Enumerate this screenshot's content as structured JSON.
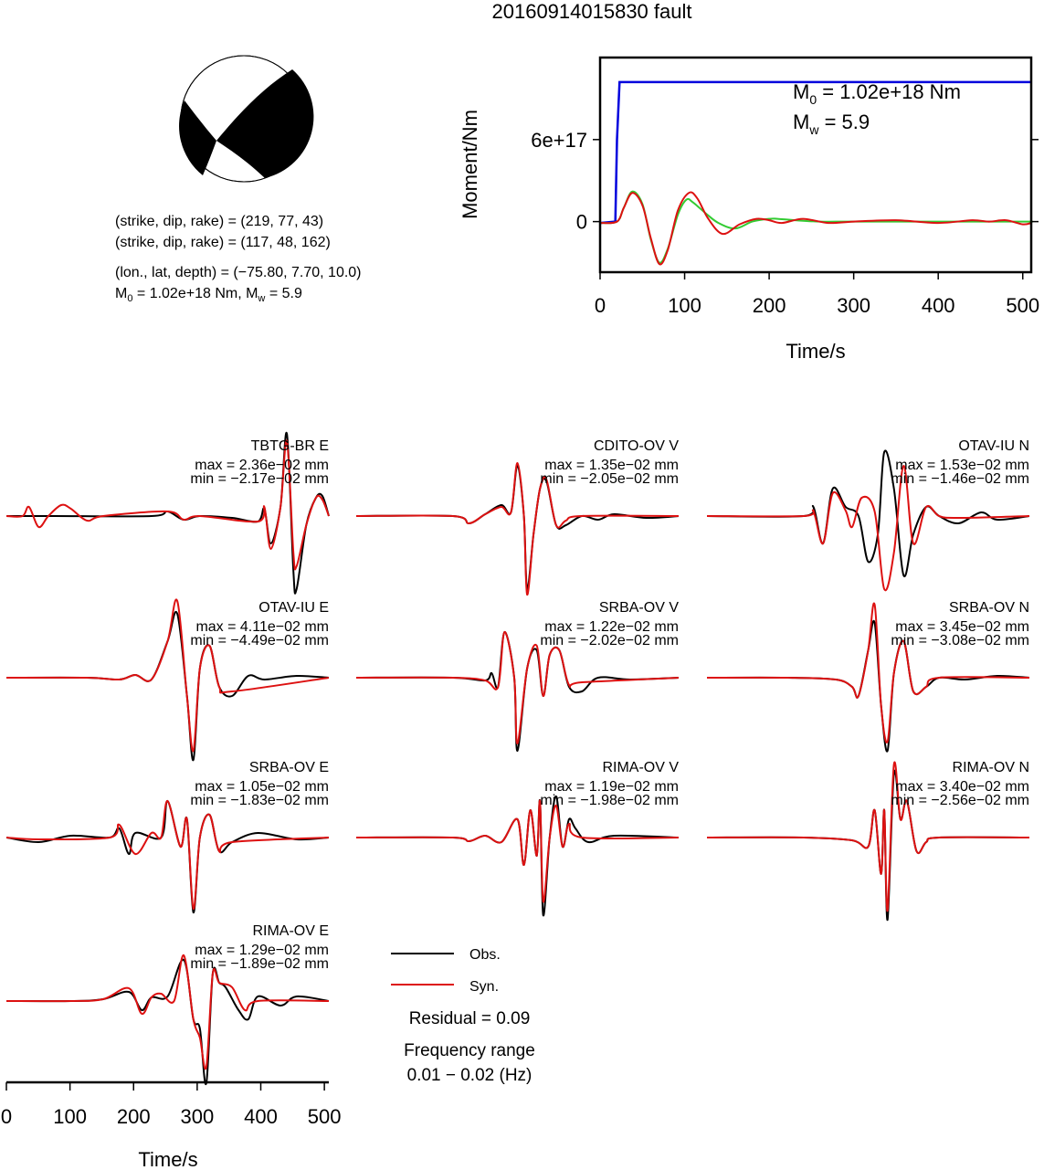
{
  "title": "20160914015830 fault",
  "focal_mechanism": {
    "plane1": "(strike, dip, rake) = (219, 77, 43)",
    "plane2": "(strike, dip, rake) = (117, 48, 162)",
    "location": "(lon., lat, depth) = (−75.80, 7.70, 10.0)",
    "m0_label": "M",
    "m0_sub": "0",
    "m0_text": " = 1.02e+18 Nm, M",
    "mw_sub": "w",
    "mw_text": " = 5.9"
  },
  "moment_plot": {
    "ylabel": "Moment/Nm",
    "xlabel": "Time/s",
    "ytick_labels": [
      "0",
      "6e+17"
    ],
    "xtick_labels": [
      "0",
      "100",
      "200",
      "300",
      "400",
      "500"
    ],
    "m0_prefix": "M",
    "m0_sub": "0",
    "m0_value": " = 1.02e+18 Nm",
    "mw_prefix": "M",
    "mw_sub": "w",
    "mw_value": " = 5.9",
    "colors": {
      "cumulative": "#0000dd",
      "rate_obs": "#33cc33",
      "rate_syn": "#dd1111"
    }
  },
  "waveforms": [
    {
      "station": "TBTG-BR E",
      "max": "max = 2.36e−02 mm",
      "min": "min = −2.17e−02 mm"
    },
    {
      "station": "CDITO-OV V",
      "max": "max = 1.35e−02 mm",
      "min": "min = −2.05e−02 mm"
    },
    {
      "station": "OTAV-IU N",
      "max": "max = 1.53e−02 mm",
      "min": "min = −1.46e−02 mm"
    },
    {
      "station": "OTAV-IU E",
      "max": "max = 4.11e−02 mm",
      "min": "min = −4.49e−02 mm"
    },
    {
      "station": "SRBA-OV V",
      "max": "max = 1.22e−02 mm",
      "min": "min = −2.02e−02 mm"
    },
    {
      "station": "SRBA-OV N",
      "max": "max = 3.45e−02 mm",
      "min": "min = −3.08e−02 mm"
    },
    {
      "station": "SRBA-OV E",
      "max": "max = 1.05e−02 mm",
      "min": "min = −1.83e−02 mm"
    },
    {
      "station": "RIMA-OV V",
      "max": "max = 1.19e−02 mm",
      "min": "min = −1.98e−02 mm"
    },
    {
      "station": "RIMA-OV N",
      "max": "max = 3.40e−02 mm",
      "min": "min = −2.56e−02 mm"
    },
    {
      "station": "RIMA-OV E",
      "max": "max = 1.29e−02 mm",
      "min": "min = −1.89e−02 mm"
    }
  ],
  "waveform_axis": {
    "xlabel": "Time/s",
    "xtick_labels": [
      "0",
      "100",
      "200",
      "300",
      "400",
      "500"
    ]
  },
  "legend": {
    "obs": "Obs.",
    "syn": "Syn.",
    "obs_color": "#000000",
    "syn_color": "#dd1111"
  },
  "residual": "Residual = 0.09",
  "frequency_label": "Frequency range",
  "frequency_value": "0.01 − 0.02 (Hz)",
  "chart_data": [
    {
      "type": "line",
      "title": "20160914015830 fault",
      "xlabel": "Time/s",
      "ylabel": "Moment/Nm",
      "xlim": [
        0,
        510
      ],
      "ylim": [
        -3.7e+17,
        1.2e+18
      ],
      "x_ticks": [
        0,
        100,
        200,
        300,
        400,
        500
      ],
      "y_ticks": [
        0,
        6e+17
      ],
      "series": [
        {
          "color": "#0000dd",
          "x": [
            0,
            18,
            20,
            23,
            510
          ],
          "y": [
            -1e+16,
            0,
            6e+17,
            1.02e+18,
            1.02e+18
          ]
        },
        {
          "color": "#33cc33",
          "x": [
            0,
            20,
            28,
            38,
            50,
            60,
            70,
            80,
            92,
            102,
            110,
            125,
            140,
            160,
            180,
            200,
            210,
            230,
            260,
            300,
            400,
            500,
            510
          ],
          "y": [
            -1e+16,
            0,
            1e+17,
            2.2e+17,
            1.3e+17,
            -1.3e+17,
            -3e+17,
            -2e+17,
            5e+16,
            1.6e+17,
            1.4e+17,
            6e+16,
            -1e+16,
            -5e+16,
            0,
            2e+16,
            2e+16,
            1e+16,
            0,
            0,
            0,
            0,
            0
          ]
        },
        {
          "color": "#dd1111",
          "x": [
            0,
            20,
            28,
            38,
            50,
            60,
            70,
            80,
            92,
            105,
            115,
            128,
            145,
            165,
            185,
            200,
            215,
            240,
            270,
            300,
            350,
            400,
            440,
            460,
            480,
            500,
            510
          ],
          "y": [
            -1e+16,
            0,
            1e+17,
            2.1e+17,
            1.2e+17,
            -1.2e+17,
            -3.1e+17,
            -2.1e+17,
            8e+16,
            2.1e+17,
            1.7e+17,
            2e+16,
            -9e+16,
            -2e+16,
            2e+16,
            1e+16,
            -1e+16,
            2e+16,
            -1e+16,
            0,
            1e+16,
            -1e+16,
            1e+16,
            0,
            1e+16,
            -2e+16,
            -1e+16
          ]
        }
      ]
    }
  ]
}
